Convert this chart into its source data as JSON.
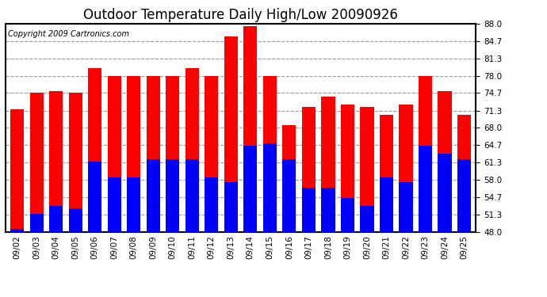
{
  "title": "Outdoor Temperature Daily High/Low 20090926",
  "copyright": "Copyright 2009 Cartronics.com",
  "dates": [
    "09/02",
    "09/03",
    "09/04",
    "09/05",
    "09/06",
    "09/07",
    "09/08",
    "09/09",
    "09/10",
    "09/11",
    "09/12",
    "09/13",
    "09/14",
    "09/15",
    "09/16",
    "09/17",
    "09/18",
    "09/19",
    "09/20",
    "09/21",
    "09/22",
    "09/23",
    "09/24",
    "09/25"
  ],
  "highs": [
    71.5,
    74.7,
    75.0,
    74.7,
    79.5,
    78.0,
    78.0,
    78.0,
    78.0,
    79.5,
    78.0,
    85.5,
    87.5,
    78.0,
    68.5,
    72.0,
    74.0,
    72.5,
    72.0,
    70.5,
    72.5,
    78.0,
    75.0,
    70.5
  ],
  "lows": [
    48.5,
    51.5,
    53.0,
    52.5,
    61.5,
    58.5,
    58.5,
    62.0,
    62.0,
    62.0,
    58.5,
    57.5,
    64.5,
    65.0,
    62.0,
    56.5,
    56.5,
    54.5,
    53.0,
    58.5,
    57.5,
    64.5,
    63.0,
    62.0
  ],
  "high_color": "#ff0000",
  "low_color": "#0000ff",
  "bg_color": "#ffffff",
  "plot_bg_color": "#ffffff",
  "grid_color": "#999999",
  "ymin": 48.0,
  "ymax": 88.0,
  "yticks": [
    48.0,
    51.3,
    54.7,
    58.0,
    61.3,
    64.7,
    68.0,
    71.3,
    74.7,
    78.0,
    81.3,
    84.7,
    88.0
  ],
  "title_fontsize": 12,
  "copyright_fontsize": 7,
  "tick_fontsize": 7.5,
  "bar_width": 0.7
}
